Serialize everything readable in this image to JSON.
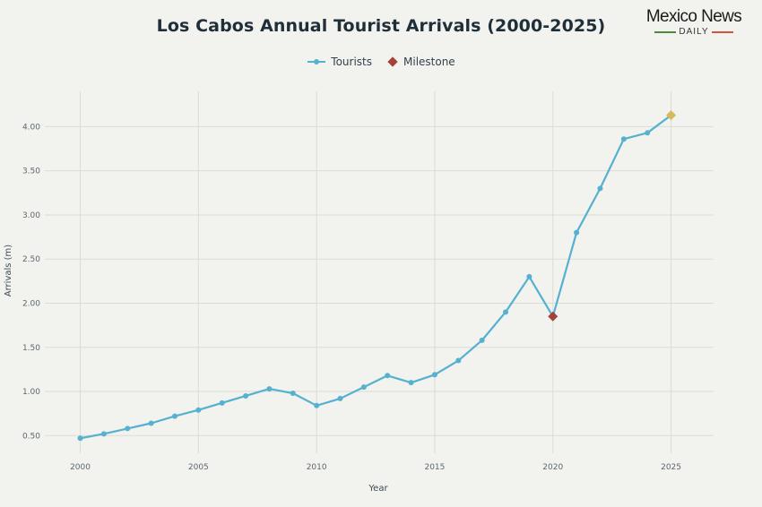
{
  "brand": {
    "name": "Mexico News",
    "sub": "DAILY"
  },
  "chart_data": {
    "type": "line",
    "title": "Los Cabos Annual Tourist Arrivals (2000-2025)",
    "xlabel": "Year",
    "ylabel": "Arrivals (m)",
    "xlim": [
      1998.5,
      2026.8
    ],
    "ylim": [
      0.3,
      4.4
    ],
    "x_ticks": [
      2000,
      2005,
      2010,
      2015,
      2020,
      2025
    ],
    "y_ticks": [
      0.5,
      1.0,
      1.5,
      2.0,
      2.5,
      3.0,
      3.5,
      4.0
    ],
    "y_tick_labels": [
      "0.50",
      "1.00",
      "1.50",
      "2.00",
      "2.50",
      "3.00",
      "3.50",
      "4.00"
    ],
    "grid": true,
    "legend_position": "top-center",
    "series": [
      {
        "name": "Tourists",
        "color": "#55b1cf",
        "x": [
          2000,
          2001,
          2002,
          2003,
          2004,
          2005,
          2006,
          2007,
          2008,
          2009,
          2010,
          2011,
          2012,
          2013,
          2014,
          2015,
          2016,
          2017,
          2018,
          2019,
          2020,
          2021,
          2022,
          2023,
          2024,
          2025
        ],
        "y": [
          0.47,
          0.52,
          0.58,
          0.64,
          0.72,
          0.79,
          0.87,
          0.95,
          1.03,
          0.98,
          0.84,
          0.92,
          1.05,
          1.18,
          1.1,
          1.19,
          1.35,
          1.58,
          1.9,
          2.3,
          1.85,
          2.8,
          3.3,
          3.86,
          3.93,
          4.13
        ]
      }
    ],
    "milestones": {
      "name": "Milestone",
      "legend_color": "#a3413a",
      "points": [
        {
          "x": 2020,
          "y": 1.85,
          "color": "#a3413a"
        },
        {
          "x": 2025,
          "y": 4.13,
          "color": "#d6b95a"
        }
      ]
    }
  }
}
